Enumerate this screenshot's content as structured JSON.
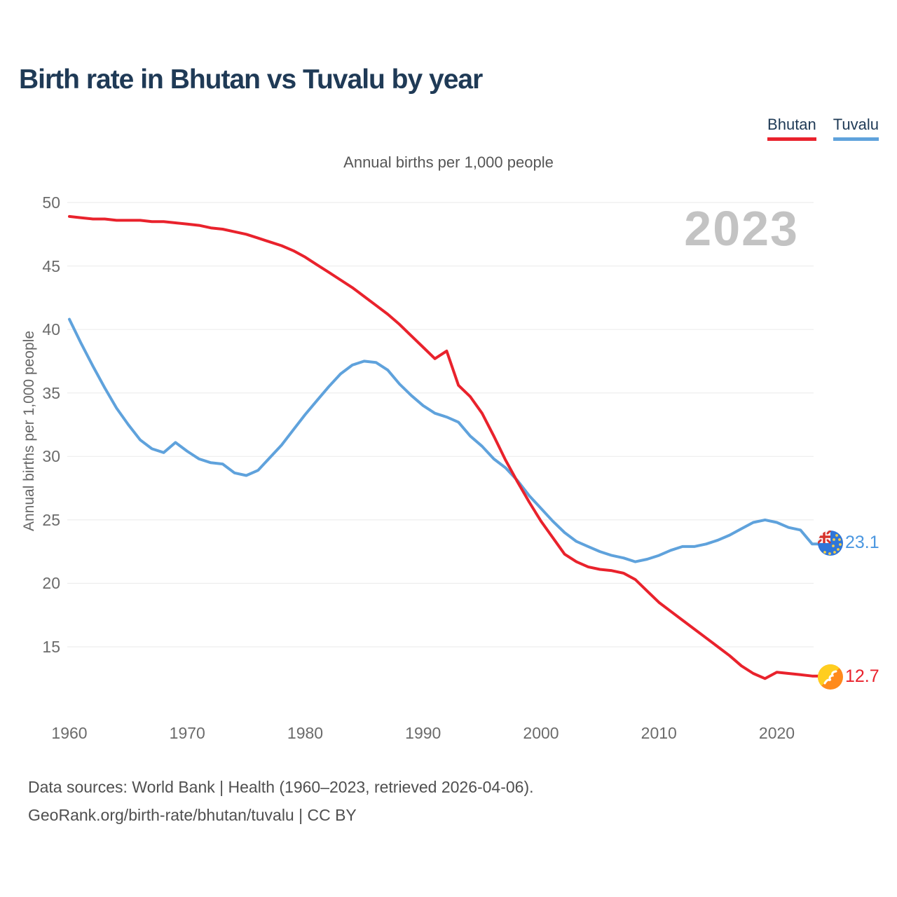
{
  "header": {
    "title": "Birth rate in Bhutan vs Tuvalu by year"
  },
  "legend": {
    "items": [
      {
        "label": "Bhutan",
        "color": "#e9222c"
      },
      {
        "label": "Tuvalu",
        "color": "#5fa2dc"
      }
    ]
  },
  "subtitle": "Annual births per 1,000 people",
  "watermark": "2023",
  "end_labels": {
    "tuvalu": {
      "value": "23.1",
      "color": "#4b97e0"
    },
    "bhutan": {
      "value": "12.7",
      "color": "#e9222c"
    }
  },
  "footer": {
    "line1": "Data sources: World Bank | Health (1960–2023, retrieved 2026-04-06).",
    "line2": "GeoRank.org/birth-rate/bhutan/tuvalu | CC BY"
  },
  "chart_data": {
    "type": "line",
    "title": "Birth rate in Bhutan vs Tuvalu by year",
    "subtitle": "Annual births per 1,000 people",
    "ylabel": "Annual births per 1,000 people",
    "xlabel": "",
    "grid": true,
    "legend_position": "top-right",
    "ylim": [
      12,
      50
    ],
    "y_ticks": [
      50,
      45,
      40,
      35,
      30,
      25,
      20,
      15
    ],
    "x_ticks": [
      1960,
      1970,
      1980,
      1990,
      2000,
      2010,
      2020
    ],
    "x": [
      1960,
      1961,
      1962,
      1963,
      1964,
      1965,
      1966,
      1967,
      1968,
      1969,
      1970,
      1971,
      1972,
      1973,
      1974,
      1975,
      1976,
      1977,
      1978,
      1979,
      1980,
      1981,
      1982,
      1983,
      1984,
      1985,
      1986,
      1987,
      1988,
      1989,
      1990,
      1991,
      1992,
      1993,
      1994,
      1995,
      1996,
      1997,
      1998,
      1999,
      2000,
      2001,
      2002,
      2003,
      2004,
      2005,
      2006,
      2007,
      2008,
      2009,
      2010,
      2011,
      2012,
      2013,
      2014,
      2015,
      2016,
      2017,
      2018,
      2019,
      2020,
      2021,
      2022,
      2023
    ],
    "series": [
      {
        "name": "Bhutan",
        "color": "#e9222c",
        "end_value": 12.7,
        "values": [
          48.9,
          48.8,
          48.7,
          48.7,
          48.6,
          48.6,
          48.6,
          48.5,
          48.5,
          48.4,
          48.3,
          48.2,
          48.0,
          47.9,
          47.7,
          47.5,
          47.2,
          46.9,
          46.6,
          46.2,
          45.7,
          45.1,
          44.5,
          43.9,
          43.3,
          42.6,
          41.9,
          41.2,
          40.4,
          39.5,
          38.6,
          37.7,
          38.3,
          35.6,
          34.7,
          33.4,
          31.6,
          29.7,
          28.0,
          26.4,
          24.9,
          23.6,
          22.3,
          21.7,
          21.3,
          21.1,
          21.0,
          20.8,
          20.3,
          19.4,
          18.5,
          17.8,
          17.1,
          16.4,
          15.7,
          15.0,
          14.3,
          13.5,
          12.9,
          12.5,
          13.0,
          12.9,
          12.8,
          12.7
        ]
      },
      {
        "name": "Tuvalu",
        "color": "#5fa2dc",
        "end_value": 23.1,
        "values": [
          40.8,
          38.9,
          37.1,
          35.4,
          33.8,
          32.5,
          31.3,
          30.6,
          30.3,
          31.1,
          30.4,
          29.8,
          29.5,
          29.4,
          28.7,
          28.5,
          28.9,
          29.9,
          30.9,
          32.1,
          33.3,
          34.4,
          35.5,
          36.5,
          37.2,
          37.5,
          37.4,
          36.8,
          35.7,
          34.8,
          34.0,
          33.4,
          33.1,
          32.7,
          31.6,
          30.8,
          29.8,
          29.1,
          28.1,
          26.9,
          25.9,
          24.9,
          24.0,
          23.3,
          22.9,
          22.5,
          22.2,
          22.0,
          21.7,
          21.9,
          22.2,
          22.6,
          22.9,
          22.9,
          23.1,
          23.4,
          23.8,
          24.3,
          24.8,
          25.0,
          24.8,
          24.4,
          24.2,
          23.1
        ]
      }
    ]
  }
}
